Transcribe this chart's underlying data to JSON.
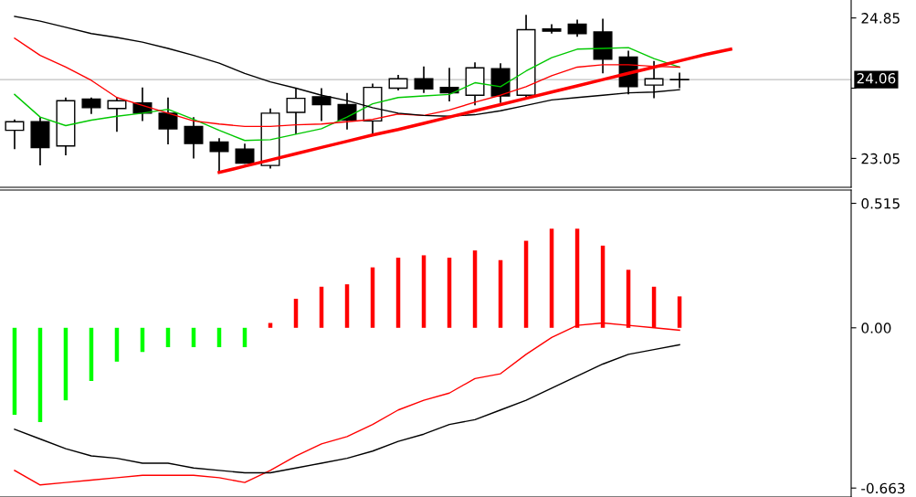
{
  "chart_data": [
    {
      "type": "candlestick",
      "categories": [
        null,
        null,
        null,
        null,
        null,
        null,
        null,
        null,
        null,
        null,
        null,
        null,
        null,
        null,
        null,
        null,
        null,
        null,
        null,
        null,
        null,
        null,
        null,
        null,
        null,
        null,
        null,
        null,
        null,
        null,
        null,
        null,
        null
      ],
      "ohlc": [
        [
          23.41,
          23.54,
          23.18,
          23.52
        ],
        [
          23.52,
          23.57,
          22.97,
          23.19
        ],
        [
          23.21,
          23.82,
          23.1,
          23.79
        ],
        [
          23.81,
          23.82,
          23.63,
          23.7
        ],
        [
          23.69,
          23.82,
          23.4,
          23.79
        ],
        [
          23.76,
          23.95,
          23.54,
          23.63
        ],
        [
          23.63,
          23.82,
          23.24,
          23.43
        ],
        [
          23.46,
          23.57,
          23.06,
          23.24
        ],
        [
          23.26,
          23.3,
          22.87,
          23.14
        ],
        [
          23.17,
          23.23,
          22.99,
          22.99
        ],
        [
          22.96,
          23.68,
          22.93,
          23.63
        ],
        [
          23.64,
          23.94,
          23.37,
          23.82
        ],
        [
          23.84,
          23.94,
          23.54,
          23.74
        ],
        [
          23.74,
          23.88,
          23.43,
          23.54
        ],
        [
          23.53,
          24.0,
          23.35,
          23.96
        ],
        [
          23.95,
          24.11,
          23.93,
          24.07
        ],
        [
          24.07,
          24.22,
          23.9,
          23.94
        ],
        [
          23.96,
          24.2,
          23.79,
          23.89
        ],
        [
          23.86,
          24.27,
          23.74,
          24.21
        ],
        [
          24.2,
          24.26,
          23.77,
          23.85
        ],
        [
          23.86,
          24.88,
          23.85,
          24.7
        ],
        [
          24.71,
          24.76,
          24.66,
          24.68
        ],
        [
          24.77,
          24.82,
          24.62,
          24.65
        ],
        [
          24.67,
          24.83,
          24.15,
          24.32
        ],
        [
          24.35,
          24.42,
          23.88,
          23.97
        ],
        [
          23.99,
          24.29,
          23.83,
          24.07
        ],
        [
          24.06,
          24.14,
          23.96,
          24.06
        ],
        null,
        null,
        null,
        null,
        null,
        null
      ],
      "series": [
        {
          "type": "line",
          "color": "#00c800",
          "values": [
            23.87,
            23.58,
            23.47,
            23.54,
            23.59,
            23.63,
            23.68,
            23.55,
            23.41,
            23.28,
            23.29,
            23.36,
            23.43,
            23.58,
            23.75,
            23.83,
            23.85,
            23.87,
            24.02,
            23.97,
            24.17,
            24.34,
            24.45,
            24.46,
            24.47,
            24.33,
            24.22,
            null,
            null,
            null,
            null,
            null,
            null
          ]
        },
        {
          "type": "line",
          "color": "#ff0000",
          "values": [
            24.59,
            24.37,
            24.22,
            24.05,
            23.83,
            23.73,
            23.63,
            23.53,
            23.49,
            23.46,
            23.46,
            23.48,
            23.49,
            23.52,
            23.55,
            23.62,
            23.6,
            23.67,
            23.77,
            23.86,
            23.97,
            24.11,
            24.22,
            24.25,
            24.25,
            24.23,
            24.22,
            null,
            null,
            null,
            null,
            null,
            null
          ]
        },
        {
          "type": "line",
          "color": "#000000",
          "values": [
            24.87,
            24.81,
            24.73,
            24.65,
            24.6,
            24.54,
            24.46,
            24.37,
            24.27,
            24.14,
            24.03,
            23.95,
            23.86,
            23.79,
            23.7,
            23.63,
            23.6,
            23.59,
            23.61,
            23.66,
            23.73,
            23.8,
            23.83,
            23.86,
            23.89,
            23.9,
            23.93,
            null,
            null,
            null,
            null,
            null,
            null
          ]
        },
        {
          "type": "line",
          "color": "#ff0000",
          "values": [
            null,
            null,
            null,
            null,
            null,
            null,
            null,
            null,
            22.87,
            22.95,
            23.03,
            23.11,
            23.19,
            23.27,
            23.35,
            23.42,
            23.5,
            23.58,
            23.66,
            23.74,
            23.82,
            23.9,
            23.98,
            24.06,
            24.14,
            24.22,
            24.3,
            24.38,
            24.45,
            null,
            null,
            null,
            null
          ]
        }
      ],
      "ylim": [
        22.68,
        25.08
      ],
      "yticks": [
        23.05,
        {
          "value": 23.95,
          "label": null
        },
        24.85
      ],
      "ref_lines": [
        {
          "axis": "y",
          "value": 24.06,
          "label": "24.06",
          "color": "#c0c0c0"
        }
      ],
      "tick_labels": "y",
      "grid": false,
      "legend": false
    },
    {
      "type": "bar",
      "categories": [
        null,
        null,
        null,
        null,
        null,
        null,
        null,
        null,
        null,
        null,
        null,
        null,
        null,
        null,
        null,
        null,
        null,
        null,
        null,
        null,
        null,
        null,
        null,
        null,
        null,
        null,
        null,
        null,
        null,
        null,
        null,
        null,
        null
      ],
      "series": [
        {
          "type": "bar",
          "colors": [
            "#00ff00",
            "#00ff00",
            "#00ff00",
            "#00ff00",
            "#00ff00",
            "#00ff00",
            "#00ff00",
            "#00ff00",
            "#00ff00",
            "#00ff00",
            "#ff0000",
            "#ff0000",
            "#ff0000",
            "#ff0000",
            "#ff0000",
            "#ff0000",
            "#ff0000",
            "#ff0000",
            "#ff0000",
            "#ff0000",
            "#ff0000",
            "#ff0000",
            "#ff0000",
            "#ff0000",
            "#ff0000",
            "#ff0000",
            "#ff0000",
            null,
            null,
            null,
            null,
            null,
            null
          ],
          "values": [
            -0.36,
            -0.39,
            -0.3,
            -0.22,
            -0.14,
            -0.1,
            -0.08,
            -0.08,
            -0.08,
            -0.08,
            0.02,
            0.12,
            0.17,
            0.18,
            0.25,
            0.29,
            0.3,
            0.29,
            0.32,
            0.28,
            0.36,
            0.41,
            0.41,
            0.34,
            0.24,
            0.17,
            0.13,
            null,
            null,
            null,
            null,
            null,
            null
          ]
        },
        {
          "type": "line",
          "color": "#ff0000",
          "values": [
            -0.59,
            -0.65,
            -0.64,
            -0.63,
            -0.62,
            -0.61,
            -0.61,
            -0.61,
            -0.62,
            -0.64,
            -0.59,
            -0.53,
            -0.48,
            -0.45,
            -0.4,
            -0.34,
            -0.3,
            -0.27,
            -0.21,
            -0.19,
            -0.11,
            -0.04,
            0.01,
            0.02,
            0.01,
            0.0,
            -0.01,
            null,
            null,
            null,
            null,
            null,
            null
          ]
        },
        {
          "type": "line",
          "color": "#000000",
          "values": [
            -0.42,
            -0.46,
            -0.5,
            -0.53,
            -0.54,
            -0.56,
            -0.56,
            -0.58,
            -0.59,
            -0.6,
            -0.6,
            -0.58,
            -0.56,
            -0.54,
            -0.51,
            -0.47,
            -0.44,
            -0.4,
            -0.38,
            -0.34,
            -0.3,
            -0.25,
            -0.2,
            -0.15,
            -0.11,
            -0.09,
            -0.07,
            null,
            null,
            null,
            null,
            null,
            null
          ]
        }
      ],
      "ylim": [
        -0.7,
        0.57
      ],
      "yticks": [
        0.515,
        {
          "value": 0,
          "label": "0.00"
        },
        {
          "value": -0.663,
          "label": "-0.663"
        }
      ],
      "tick_labels": "y",
      "grid": false,
      "legend": false
    }
  ]
}
